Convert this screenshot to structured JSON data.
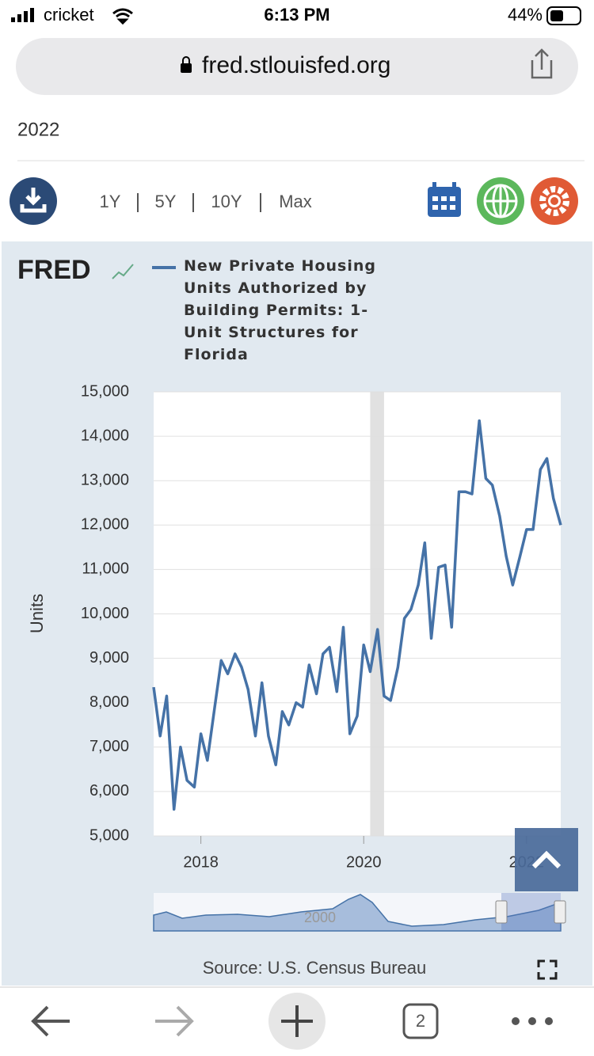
{
  "status_bar": {
    "carrier": "cricket",
    "time": "6:13 PM",
    "battery": "44%"
  },
  "browser": {
    "url": "fred.stlouisfed.org",
    "tab_count": 2
  },
  "page": {
    "title_fragment": "2022",
    "ranges": [
      "1Y",
      "5Y",
      "10Y",
      "Max"
    ],
    "logo": "FRED",
    "source": "Source: U.S. Census Bureau",
    "navigator_label": "2000"
  },
  "chart_data": {
    "type": "line",
    "y_label": "Units",
    "x": [
      2017.42,
      2017.5,
      2017.58,
      2017.67,
      2017.75,
      2017.83,
      2017.92,
      2018.0,
      2018.08,
      2018.17,
      2018.25,
      2018.33,
      2018.42,
      2018.5,
      2018.58,
      2018.67,
      2018.75,
      2018.83,
      2018.92,
      2019.0,
      2019.08,
      2019.17,
      2019.25,
      2019.33,
      2019.42,
      2019.5,
      2019.58,
      2019.67,
      2019.75,
      2019.83,
      2019.92,
      2020.0,
      2020.08,
      2020.17,
      2020.25,
      2020.33,
      2020.42,
      2020.5,
      2020.58,
      2020.67,
      2020.75,
      2020.83,
      2020.92,
      2021.0,
      2021.08,
      2021.17,
      2021.25,
      2021.33,
      2021.42,
      2021.5,
      2021.58,
      2021.67,
      2021.75,
      2021.83,
      2021.92,
      2022.0,
      2022.08,
      2022.17,
      2022.25,
      2022.33,
      2022.42
    ],
    "series": [
      {
        "name": "New Private Housing Units Authorized by Building Permits: 1-Unit Structures for Florida",
        "color": "#4572a7",
        "values": [
          8350,
          7250,
          8150,
          5600,
          7000,
          6250,
          6100,
          7300,
          6700,
          7900,
          8950,
          8650,
          9100,
          8800,
          8300,
          7250,
          8450,
          7250,
          6600,
          7800,
          7500,
          8000,
          7900,
          8850,
          8200,
          9100,
          9250,
          8250,
          9700,
          7300,
          7700,
          9300,
          8700,
          9650,
          8150,
          8050,
          8800,
          9900,
          10100,
          10650,
          11600,
          9450,
          11050,
          11100,
          9700,
          12750,
          12750,
          12700,
          14350,
          13050,
          12900,
          12200,
          11300,
          10650,
          11300,
          11900,
          11900,
          13250,
          13500,
          12600,
          12000
        ]
      }
    ],
    "xlim": [
      2017.42,
      2022.42
    ],
    "xticks": [
      2018,
      2020,
      2022
    ],
    "ylim": [
      5000,
      15000
    ],
    "yticks": [
      {
        "value": 5000,
        "label": "5,000"
      },
      {
        "value": 6000,
        "label": "6,000"
      },
      {
        "value": 7000,
        "label": "7,000"
      },
      {
        "value": 8000,
        "label": "8,000"
      },
      {
        "value": 9000,
        "label": "9,000"
      },
      {
        "value": 10000,
        "label": "10,000"
      },
      {
        "value": 11000,
        "label": "11,000"
      },
      {
        "value": 12000,
        "label": "12,000"
      },
      {
        "value": 13000,
        "label": "13,000"
      },
      {
        "value": 14000,
        "label": "14,000"
      },
      {
        "value": 15000,
        "label": "15,000"
      }
    ],
    "grid": true,
    "shaded_regions": [
      [
        2020.08,
        2020.25
      ]
    ]
  }
}
